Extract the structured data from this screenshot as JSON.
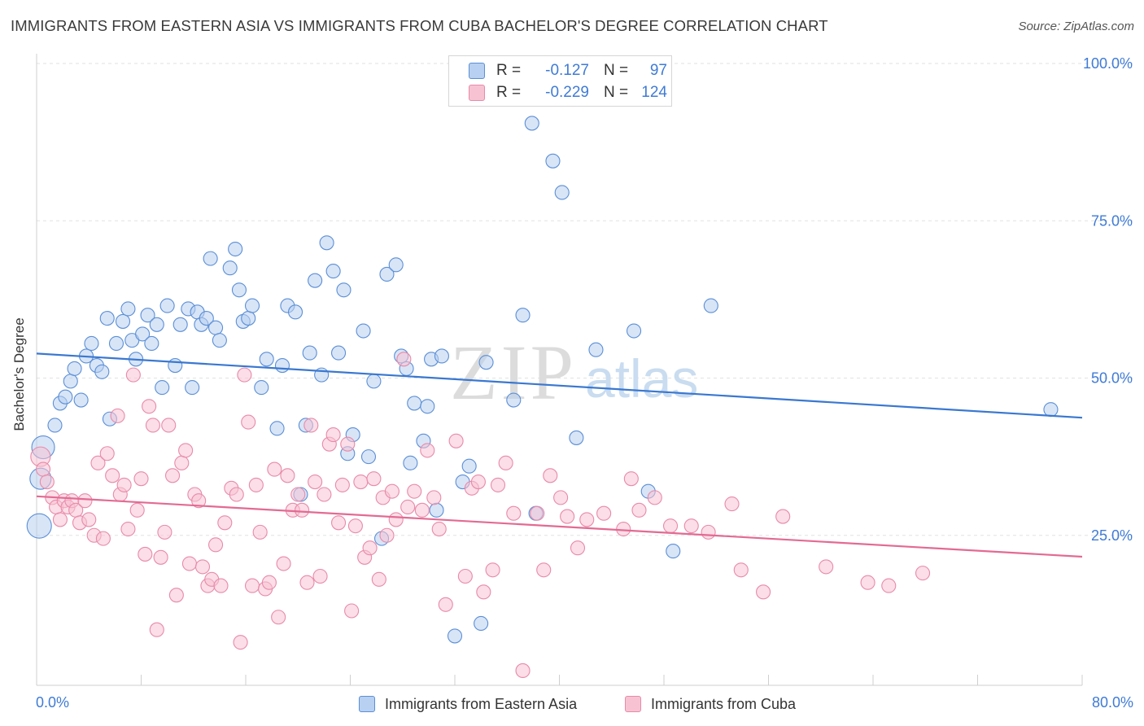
{
  "title": "IMMIGRANTS FROM EASTERN ASIA VS IMMIGRANTS FROM CUBA BACHELOR'S DEGREE CORRELATION CHART",
  "source": "Source: ZipAtlas.com",
  "watermark": {
    "zip": "ZIP",
    "atlas": "atlas"
  },
  "legend": {
    "r_label": "R =",
    "n_label": "N =",
    "rows": [
      {
        "r": "-0.127",
        "n": "97",
        "color": "#5b8fd6",
        "fill": "#b8d0f1"
      },
      {
        "r": "-0.229",
        "n": "124",
        "color": "#e88aa9",
        "fill": "#f7c3d3"
      }
    ]
  },
  "bottom_legend": [
    "Immigrants from Eastern Asia",
    "Immigrants from Cuba"
  ],
  "chart_data": {
    "type": "scatter",
    "ylabel": "Bachelor's Degree",
    "x_tick_labels": [
      "0.0%",
      "80.0%"
    ],
    "y_tick_labels": [
      "25.0%",
      "50.0%",
      "75.0%",
      "100.0%"
    ],
    "xlim": [
      0,
      80
    ],
    "ylim": [
      0,
      100
    ],
    "grid": true,
    "series": [
      {
        "name": "Immigrants from Eastern Asia",
        "color": "#5b8fd6",
        "fill": "#b8d0f1",
        "trend": {
          "x": [
            0,
            80
          ],
          "y": [
            53.9,
            43.7
          ]
        },
        "points": [
          [
            0.5,
            39
          ],
          [
            0.3,
            34
          ],
          [
            0.2,
            26.5
          ],
          [
            1.4,
            42.5
          ],
          [
            1.8,
            46
          ],
          [
            2.2,
            47
          ],
          [
            2.6,
            49.5
          ],
          [
            2.9,
            51.5
          ],
          [
            3.4,
            46.5
          ],
          [
            3.8,
            53.5
          ],
          [
            4.2,
            55.5
          ],
          [
            4.6,
            52
          ],
          [
            5,
            51
          ],
          [
            5.4,
            59.5
          ],
          [
            5.6,
            43.5
          ],
          [
            6.1,
            55.5
          ],
          [
            6.6,
            59
          ],
          [
            7,
            61
          ],
          [
            7.3,
            56
          ],
          [
            7.6,
            53
          ],
          [
            8.1,
            57
          ],
          [
            8.5,
            60
          ],
          [
            8.8,
            55.5
          ],
          [
            9.2,
            58.5
          ],
          [
            9.6,
            48.5
          ],
          [
            10,
            61.5
          ],
          [
            10.6,
            52
          ],
          [
            11,
            58.5
          ],
          [
            11.6,
            61
          ],
          [
            11.9,
            48.5
          ],
          [
            12.3,
            60.5
          ],
          [
            12.6,
            58.5
          ],
          [
            13,
            59.5
          ],
          [
            13.3,
            69
          ],
          [
            13.7,
            58
          ],
          [
            14,
            56
          ],
          [
            14.8,
            67.5
          ],
          [
            15.2,
            70.5
          ],
          [
            15.5,
            64
          ],
          [
            15.8,
            59
          ],
          [
            16.2,
            59.5
          ],
          [
            16.5,
            61.5
          ],
          [
            17.2,
            48.5
          ],
          [
            17.6,
            53
          ],
          [
            18.4,
            42
          ],
          [
            18.8,
            52
          ],
          [
            19.2,
            61.5
          ],
          [
            19.8,
            60.5
          ],
          [
            20.2,
            31.5
          ],
          [
            20.6,
            42.5
          ],
          [
            20.9,
            54
          ],
          [
            21.3,
            65.5
          ],
          [
            21.8,
            50.5
          ],
          [
            22.2,
            71.5
          ],
          [
            22.7,
            67
          ],
          [
            23.1,
            54
          ],
          [
            23.5,
            64
          ],
          [
            23.8,
            38
          ],
          [
            24.2,
            41
          ],
          [
            25,
            57.5
          ],
          [
            25.4,
            37.5
          ],
          [
            25.8,
            49.5
          ],
          [
            26.4,
            24.5
          ],
          [
            26.8,
            66.5
          ],
          [
            27.5,
            68
          ],
          [
            27.9,
            53.5
          ],
          [
            28.3,
            51.5
          ],
          [
            28.6,
            36.5
          ],
          [
            28.9,
            46
          ],
          [
            29.6,
            40
          ],
          [
            29.9,
            45.5
          ],
          [
            30.2,
            53
          ],
          [
            30.6,
            29
          ],
          [
            31,
            53.5
          ],
          [
            32,
            9
          ],
          [
            32.6,
            33.5
          ],
          [
            33.1,
            36
          ],
          [
            34,
            11
          ],
          [
            34.4,
            52.5
          ],
          [
            36.5,
            46.5
          ],
          [
            37.2,
            60
          ],
          [
            37.9,
            90.5
          ],
          [
            38.2,
            28.5
          ],
          [
            39.5,
            84.5
          ],
          [
            40.2,
            79.5
          ],
          [
            41.3,
            40.5
          ],
          [
            42.8,
            54.5
          ],
          [
            45.7,
            57.5
          ],
          [
            46.8,
            32
          ],
          [
            48.7,
            22.5
          ],
          [
            51.6,
            61.5
          ],
          [
            77.6,
            45
          ]
        ],
        "radii": {
          "0": 14,
          "1": 13,
          "2": 15
        }
      },
      {
        "name": "Immigrants from Cuba",
        "color": "#e88aa9",
        "fill": "#f7c3d3",
        "trend": {
          "x": [
            0,
            80
          ],
          "y": [
            31.2,
            21.6
          ]
        },
        "points": [
          [
            0.3,
            37.5
          ],
          [
            0.5,
            35.5
          ],
          [
            0.8,
            33.5
          ],
          [
            1.2,
            31
          ],
          [
            1.5,
            29.5
          ],
          [
            1.8,
            27.5
          ],
          [
            2.1,
            30.5
          ],
          [
            2.4,
            29.5
          ],
          [
            2.7,
            30.5
          ],
          [
            3,
            29
          ],
          [
            3.3,
            27
          ],
          [
            3.7,
            30.5
          ],
          [
            4,
            27.5
          ],
          [
            4.4,
            25
          ],
          [
            4.7,
            36.5
          ],
          [
            5.1,
            24.5
          ],
          [
            5.4,
            38
          ],
          [
            5.8,
            34.5
          ],
          [
            6.2,
            44
          ],
          [
            6.4,
            31.5
          ],
          [
            6.7,
            33
          ],
          [
            7,
            26
          ],
          [
            7.4,
            50.5
          ],
          [
            7.7,
            29
          ],
          [
            8,
            34
          ],
          [
            8.3,
            22
          ],
          [
            8.6,
            45.5
          ],
          [
            8.9,
            42.5
          ],
          [
            9.2,
            10
          ],
          [
            9.5,
            21.5
          ],
          [
            9.8,
            25.5
          ],
          [
            10.1,
            42.5
          ],
          [
            10.4,
            34.5
          ],
          [
            10.7,
            15.5
          ],
          [
            11.1,
            36.5
          ],
          [
            11.4,
            38.5
          ],
          [
            11.7,
            20.5
          ],
          [
            12.1,
            31.5
          ],
          [
            12.4,
            30.5
          ],
          [
            12.7,
            20
          ],
          [
            13.1,
            17
          ],
          [
            13.4,
            18
          ],
          [
            13.7,
            23.5
          ],
          [
            14.1,
            17
          ],
          [
            14.4,
            27
          ],
          [
            14.9,
            32.5
          ],
          [
            15.3,
            31.5
          ],
          [
            15.6,
            8
          ],
          [
            15.9,
            50.5
          ],
          [
            16.2,
            43
          ],
          [
            16.5,
            17
          ],
          [
            16.8,
            33
          ],
          [
            17.1,
            25.5
          ],
          [
            17.5,
            16.5
          ],
          [
            17.8,
            17.5
          ],
          [
            18.2,
            35.5
          ],
          [
            18.5,
            12
          ],
          [
            18.9,
            20.5
          ],
          [
            19.2,
            34.5
          ],
          [
            19.6,
            29
          ],
          [
            20,
            31.5
          ],
          [
            20.3,
            29
          ],
          [
            20.7,
            17.5
          ],
          [
            21,
            42.5
          ],
          [
            21.3,
            33.5
          ],
          [
            21.7,
            18.5
          ],
          [
            22,
            31.5
          ],
          [
            22.4,
            39.5
          ],
          [
            22.7,
            41
          ],
          [
            23.1,
            27
          ],
          [
            23.4,
            33
          ],
          [
            23.8,
            39.5
          ],
          [
            24.1,
            13
          ],
          [
            24.4,
            26.5
          ],
          [
            24.8,
            33.5
          ],
          [
            25.1,
            21.5
          ],
          [
            25.5,
            23
          ],
          [
            25.8,
            34
          ],
          [
            26.2,
            18
          ],
          [
            26.5,
            31
          ],
          [
            26.8,
            25
          ],
          [
            27.2,
            32
          ],
          [
            27.5,
            27.5
          ],
          [
            28.1,
            53
          ],
          [
            28.4,
            29.5
          ],
          [
            28.9,
            32
          ],
          [
            29.5,
            29
          ],
          [
            29.9,
            38.5
          ],
          [
            30.4,
            31
          ],
          [
            30.8,
            26
          ],
          [
            31.3,
            14
          ],
          [
            32.1,
            40
          ],
          [
            32.8,
            18.5
          ],
          [
            33.3,
            32.5
          ],
          [
            33.8,
            33.5
          ],
          [
            34.2,
            16
          ],
          [
            34.9,
            19.5
          ],
          [
            35.3,
            33
          ],
          [
            35.9,
            36.5
          ],
          [
            36.5,
            28.5
          ],
          [
            37.2,
            3.5
          ],
          [
            38.3,
            28.5
          ],
          [
            38.8,
            19.5
          ],
          [
            39.3,
            34.5
          ],
          [
            40.1,
            31
          ],
          [
            40.6,
            28
          ],
          [
            41.4,
            23
          ],
          [
            42.1,
            27.5
          ],
          [
            43.4,
            28.5
          ],
          [
            44.9,
            26
          ],
          [
            45.5,
            34
          ],
          [
            46.1,
            29
          ],
          [
            47.3,
            31
          ],
          [
            48.5,
            26.5
          ],
          [
            50.1,
            26.5
          ],
          [
            51.4,
            25.5
          ],
          [
            53.2,
            30
          ],
          [
            53.9,
            19.5
          ],
          [
            55.6,
            16
          ],
          [
            57.1,
            28
          ],
          [
            60.4,
            20
          ],
          [
            63.6,
            17.5
          ],
          [
            65.2,
            17
          ],
          [
            67.8,
            19
          ]
        ],
        "radii": {
          "0": 12
        }
      }
    ]
  }
}
